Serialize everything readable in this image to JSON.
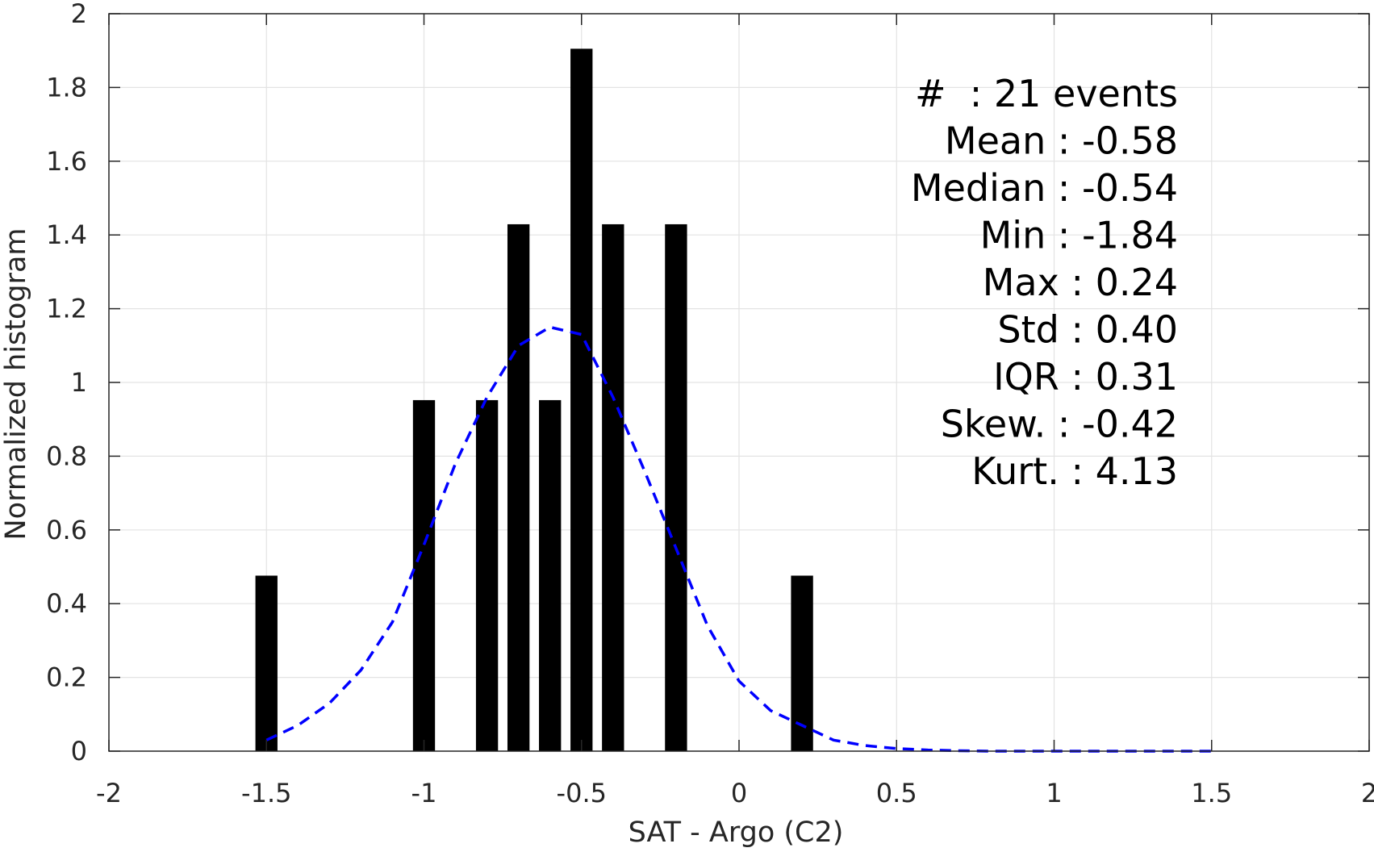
{
  "chart_data": {
    "type": "bar",
    "xlabel": "SAT - Argo (C2)",
    "ylabel": "Normalized histogram",
    "xlim": [
      -2,
      2
    ],
    "ylim": [
      0,
      2
    ],
    "grid": true,
    "x_ticks": [
      "-2",
      "-1.5",
      "-1",
      "-0.5",
      "0",
      "0.5",
      "1",
      "1.5",
      "2"
    ],
    "y_ticks": [
      "0",
      "0.2",
      "0.4",
      "0.6",
      "0.8",
      "1",
      "1.2",
      "1.4",
      "1.6",
      "1.8",
      "2"
    ],
    "bar_color": "#000000",
    "bars": [
      {
        "x": -1.5,
        "value": 0.476
      },
      {
        "x": -1.0,
        "value": 0.952
      },
      {
        "x": -0.8,
        "value": 0.952
      },
      {
        "x": -0.7,
        "value": 1.429
      },
      {
        "x": -0.6,
        "value": 0.952
      },
      {
        "x": -0.5,
        "value": 1.905
      },
      {
        "x": -0.4,
        "value": 1.429
      },
      {
        "x": -0.2,
        "value": 1.429
      },
      {
        "x": 0.2,
        "value": 0.476
      }
    ],
    "fit_curve": {
      "style": "dashed",
      "color": "#0000ff",
      "x": [
        -1.5,
        -1.4,
        -1.3,
        -1.2,
        -1.1,
        -1.0,
        -0.9,
        -0.8,
        -0.7,
        -0.6,
        -0.5,
        -0.4,
        -0.3,
        -0.2,
        -0.1,
        0.0,
        0.1,
        0.2,
        0.3,
        0.4,
        0.5,
        0.6,
        0.7,
        0.8,
        0.9,
        1.0,
        1.1,
        1.2,
        1.3,
        1.4,
        1.5
      ],
      "y": [
        0.03,
        0.07,
        0.13,
        0.22,
        0.35,
        0.56,
        0.78,
        0.96,
        1.1,
        1.15,
        1.13,
        0.96,
        0.76,
        0.55,
        0.34,
        0.19,
        0.11,
        0.07,
        0.03,
        0.015,
        0.007,
        0.003,
        0.001,
        0.0,
        0.0,
        0.0,
        0.0,
        0.0,
        0.0,
        0.0,
        0.0
      ]
    },
    "annotations": [
      "#  : 21 events",
      "Mean : -0.58",
      "Median : -0.54",
      "Min : -1.84",
      "Max : 0.24",
      "Std : 0.40",
      "IQR : 0.31",
      "Skew. : -0.42",
      "Kurt. : 4.13"
    ]
  }
}
